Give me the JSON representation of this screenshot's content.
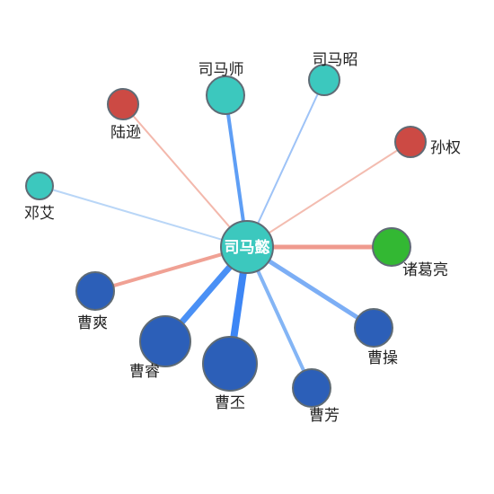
{
  "graph": {
    "center": {
      "id": "simayi",
      "label": "司马懿",
      "color": "#3cc8be"
    },
    "nodes": [
      {
        "id": "simashi",
        "label": "司马师",
        "color": "#3cc8be",
        "size": "medium",
        "link_weight": 4,
        "link_color": "#5e9ef5"
      },
      {
        "id": "simazhao",
        "label": "司马昭",
        "color": "#3cc8be",
        "size": "small",
        "link_weight": 2,
        "link_color": "#9ec3f7"
      },
      {
        "id": "luxun",
        "label": "陆逊",
        "color": "#cc4a44",
        "size": "small",
        "link_weight": 2,
        "link_color": "#f3b8ac"
      },
      {
        "id": "sunquan",
        "label": "孙权",
        "color": "#cc4a44",
        "size": "small",
        "link_weight": 2,
        "link_color": "#f3bcb0"
      },
      {
        "id": "dengai",
        "label": "邓艾",
        "color": "#3cc8be",
        "size": "tiny",
        "link_weight": 2,
        "link_color": "#b9d6f7"
      },
      {
        "id": "zhugeliang",
        "label": "诸葛亮",
        "color": "#33b833",
        "size": "medium",
        "link_weight": 5,
        "link_color": "#ef9a8e"
      },
      {
        "id": "caoshuang",
        "label": "曹爽",
        "color": "#2c5fb8",
        "size": "medium",
        "link_weight": 4,
        "link_color": "#f0a194"
      },
      {
        "id": "caorui",
        "label": "曹睿",
        "color": "#2c5fb8",
        "size": "large",
        "link_weight": 7,
        "link_color": "#4a90f5"
      },
      {
        "id": "caopi",
        "label": "曹丕",
        "color": "#2c5fb8",
        "size": "xlarge",
        "link_weight": 8,
        "link_color": "#3d86f5"
      },
      {
        "id": "caofang",
        "label": "曹芳",
        "color": "#2c5fb8",
        "size": "medium",
        "link_weight": 4,
        "link_color": "#84b5f5"
      },
      {
        "id": "caocao",
        "label": "曹操",
        "color": "#2c5fb8",
        "size": "medium",
        "link_weight": 5,
        "link_color": "#7caef5"
      }
    ]
  }
}
